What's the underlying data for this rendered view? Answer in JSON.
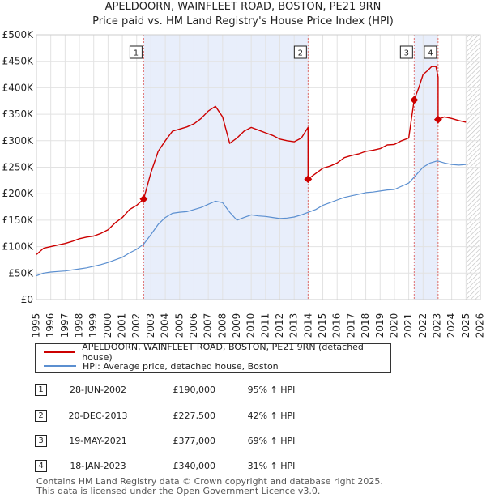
{
  "title_line1": "APELDOORN, WAINFLEET ROAD, BOSTON, PE21 9RN",
  "title_line2": "Price paid vs. HM Land Registry's House Price Index (HPI)",
  "colors": {
    "property": "#cc0000",
    "hpi": "#5b8fd0",
    "shade": "#e8eefb",
    "hatch": "#bbbbbb",
    "vline": "#e07070"
  },
  "chart_data": {
    "type": "line",
    "xlim": [
      1995,
      2026
    ],
    "ylim": [
      0,
      500000
    ],
    "y_ticks": [
      {
        "value": 0,
        "label": "£0"
      },
      {
        "value": 50000,
        "label": "£50K"
      },
      {
        "value": 100000,
        "label": "£100K"
      },
      {
        "value": 150000,
        "label": "£150K"
      },
      {
        "value": 200000,
        "label": "£200K"
      },
      {
        "value": 250000,
        "label": "£250K"
      },
      {
        "value": 300000,
        "label": "£300K"
      },
      {
        "value": 350000,
        "label": "£350K"
      },
      {
        "value": 400000,
        "label": "£400K"
      },
      {
        "value": 450000,
        "label": "£450K"
      },
      {
        "value": 500000,
        "label": "£500K"
      }
    ],
    "x_ticks": [
      "1995",
      "1996",
      "1997",
      "1998",
      "1999",
      "2000",
      "2001",
      "2002",
      "2003",
      "2004",
      "2005",
      "2006",
      "2007",
      "2008",
      "2009",
      "2010",
      "2011",
      "2012",
      "2013",
      "2014",
      "2015",
      "2016",
      "2017",
      "2018",
      "2019",
      "2020",
      "2021",
      "2022",
      "2023",
      "2024",
      "2025",
      "2026"
    ],
    "shaded_periods": [
      [
        2002.49,
        2013.97
      ],
      [
        2021.38,
        2023.05
      ]
    ],
    "future_from": 2025.0,
    "series": [
      {
        "name": "APELDOORN, WAINFLEET ROAD, BOSTON, PE21 9RN (detached house)",
        "x": [
          1995.0,
          1995.5,
          1996.0,
          1996.5,
          1997.0,
          1997.5,
          1998.0,
          1998.5,
          1999.0,
          1999.5,
          2000.0,
          2000.5,
          2001.0,
          2001.5,
          2002.0,
          2002.49,
          2002.49,
          2003.0,
          2003.5,
          2004.0,
          2004.5,
          2005.0,
          2005.5,
          2006.0,
          2006.5,
          2007.0,
          2007.5,
          2008.0,
          2008.5,
          2009.0,
          2009.5,
          2010.0,
          2010.5,
          2011.0,
          2011.5,
          2012.0,
          2012.5,
          2013.0,
          2013.5,
          2013.97,
          2013.97,
          2014.5,
          2015.0,
          2015.5,
          2016.0,
          2016.5,
          2017.0,
          2017.5,
          2018.0,
          2018.5,
          2019.0,
          2019.5,
          2020.0,
          2020.5,
          2021.0,
          2021.38,
          2021.38,
          2021.7,
          2022.0,
          2022.3,
          2022.6,
          2022.9,
          2023.05,
          2023.05,
          2023.5,
          2024.0,
          2024.5,
          2025.0
        ],
        "values": [
          85000,
          97000,
          100000,
          103000,
          106000,
          110000,
          115000,
          118000,
          120000,
          125000,
          132000,
          145000,
          155000,
          170000,
          178000,
          190000,
          190000,
          240000,
          280000,
          300000,
          318000,
          322000,
          326000,
          332000,
          342000,
          356000,
          365000,
          345000,
          295000,
          305000,
          318000,
          325000,
          320000,
          315000,
          310000,
          303000,
          300000,
          298000,
          305000,
          325000,
          227500,
          238000,
          248000,
          252000,
          258000,
          268000,
          272000,
          275000,
          280000,
          282000,
          285000,
          292000,
          293000,
          300000,
          305000,
          377000,
          377000,
          400000,
          425000,
          432000,
          440000,
          440000,
          420000,
          340000,
          345000,
          342000,
          338000,
          335000
        ]
      },
      {
        "name": "HPI: Average price, detached house, Boston",
        "x": [
          1995.0,
          1995.5,
          1996.0,
          1996.5,
          1997.0,
          1997.5,
          1998.0,
          1998.5,
          1999.0,
          1999.5,
          2000.0,
          2000.5,
          2001.0,
          2001.5,
          2002.0,
          2002.5,
          2003.0,
          2003.5,
          2004.0,
          2004.5,
          2005.0,
          2005.5,
          2006.0,
          2006.5,
          2007.0,
          2007.5,
          2008.0,
          2008.5,
          2009.0,
          2009.5,
          2010.0,
          2010.5,
          2011.0,
          2011.5,
          2012.0,
          2012.5,
          2013.0,
          2013.5,
          2014.0,
          2014.5,
          2015.0,
          2015.5,
          2016.0,
          2016.5,
          2017.0,
          2017.5,
          2018.0,
          2018.5,
          2019.0,
          2019.5,
          2020.0,
          2020.5,
          2021.0,
          2021.5,
          2022.0,
          2022.5,
          2023.0,
          2023.5,
          2024.0,
          2024.5,
          2025.0
        ],
        "values": [
          45000,
          50000,
          52000,
          53000,
          54000,
          56000,
          58000,
          60000,
          63000,
          66000,
          70000,
          75000,
          80000,
          88000,
          95000,
          105000,
          123000,
          142000,
          155000,
          163000,
          165000,
          166000,
          170000,
          174000,
          180000,
          186000,
          183000,
          165000,
          150000,
          155000,
          160000,
          158000,
          157000,
          155000,
          153000,
          154000,
          156000,
          160000,
          165000,
          170000,
          178000,
          183000,
          188000,
          193000,
          196000,
          199000,
          202000,
          203000,
          205000,
          207000,
          208000,
          214000,
          220000,
          235000,
          250000,
          258000,
          262000,
          258000,
          255000,
          254000,
          255000
        ]
      }
    ],
    "sales": [
      {
        "num": "1",
        "x": 2002.49,
        "value": 190000
      },
      {
        "num": "2",
        "x": 2013.97,
        "value": 227500
      },
      {
        "num": "3",
        "x": 2021.38,
        "value": 377000
      },
      {
        "num": "4",
        "x": 2023.05,
        "value": 340000
      }
    ]
  },
  "legend": {
    "property": "APELDOORN, WAINFLEET ROAD, BOSTON, PE21 9RN (detached house)",
    "hpi": "HPI: Average price, detached house, Boston"
  },
  "transactions": [
    {
      "num": "1",
      "date": "28-JUN-2002",
      "price": "£190,000",
      "hpi": "95% ↑ HPI"
    },
    {
      "num": "2",
      "date": "20-DEC-2013",
      "price": "£227,500",
      "hpi": "42% ↑ HPI"
    },
    {
      "num": "3",
      "date": "19-MAY-2021",
      "price": "£377,000",
      "hpi": "69% ↑ HPI"
    },
    {
      "num": "4",
      "date": "18-JAN-2023",
      "price": "£340,000",
      "hpi": "31% ↑ HPI"
    }
  ],
  "footer": {
    "line1": "Contains HM Land Registry data © Crown copyright and database right 2025.",
    "line2": "This data is licensed under the Open Government Licence v3.0."
  }
}
